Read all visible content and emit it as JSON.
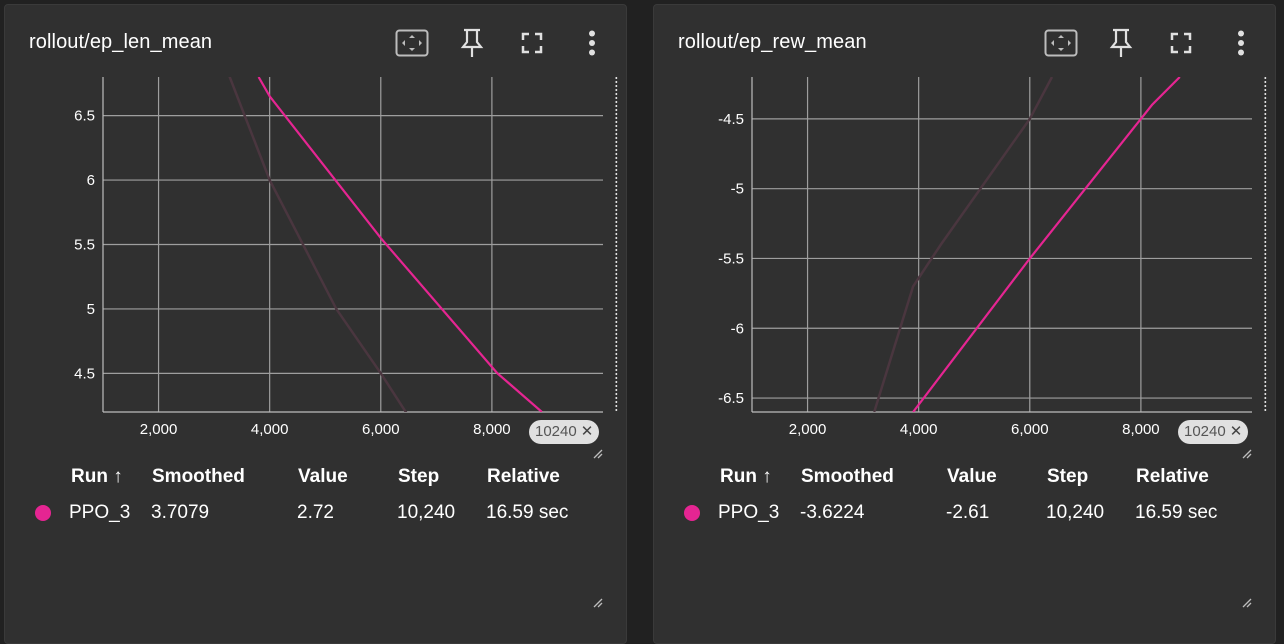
{
  "colors": {
    "accent": "#e52592",
    "raw": "#4a363f",
    "grid": "#9e9e9e",
    "bg": "#303030"
  },
  "table_headers": {
    "run": "Run ↑",
    "smoothed": "Smoothed",
    "value": "Value",
    "step": "Step",
    "relative": "Relative"
  },
  "icons": [
    "fit-domain-icon",
    "pin-icon",
    "fullscreen-icon",
    "more-vert-icon"
  ],
  "cards": [
    {
      "title": "rollout/ep_len_mean",
      "step_badge": "10240",
      "row": {
        "run": "PPO_3",
        "smoothed": "3.7079",
        "value": "2.72",
        "step": "10,240",
        "relative": "16.59 sec"
      }
    },
    {
      "title": "rollout/ep_rew_mean",
      "step_badge": "10240",
      "row": {
        "run": "PPO_3",
        "smoothed": "-3.6224",
        "value": "-2.61",
        "step": "10,240",
        "relative": "16.59 sec"
      }
    }
  ],
  "chart_data": [
    {
      "type": "line",
      "title": "rollout/ep_len_mean",
      "xlabel": "",
      "ylabel": "",
      "xlim": [
        1000,
        10000
      ],
      "ylim": [
        4.2,
        6.8
      ],
      "x_ticks": [
        2000,
        4000,
        6000,
        8000
      ],
      "x_tick_labels": [
        "2,000",
        "4,000",
        "6,000",
        "8,000"
      ],
      "y_ticks": [
        4.5,
        5,
        5.5,
        6,
        6.5
      ],
      "y_tick_labels": [
        "4.5",
        "5",
        "5.5",
        "6",
        "6.5"
      ],
      "grid": true,
      "current_step": 10240,
      "series": [
        {
          "name": "PPO_3",
          "role": "raw",
          "x": [
            3100,
            4000,
            5200,
            6000,
            6600
          ],
          "y": [
            7.0,
            6.0,
            5.0,
            4.5,
            4.1
          ]
        },
        {
          "name": "PPO_3",
          "role": "smoothed",
          "x": [
            3800,
            4000,
            6000,
            8100,
            8900
          ],
          "y": [
            6.8,
            6.65,
            5.55,
            4.5,
            4.2
          ]
        }
      ]
    },
    {
      "type": "line",
      "title": "rollout/ep_rew_mean",
      "xlabel": "",
      "ylabel": "",
      "xlim": [
        1000,
        10000
      ],
      "ylim": [
        -6.6,
        -4.2
      ],
      "x_ticks": [
        2000,
        4000,
        6000,
        8000
      ],
      "x_tick_labels": [
        "2,000",
        "4,000",
        "6,000",
        "8,000"
      ],
      "y_ticks": [
        -6.5,
        -6,
        -5.5,
        -5,
        -4.5
      ],
      "y_tick_labels": [
        "-6.5",
        "-6",
        "-5.5",
        "-5",
        "-4.5"
      ],
      "grid": true,
      "current_step": 10240,
      "series": [
        {
          "name": "PPO_3",
          "role": "raw",
          "x": [
            3200,
            3900,
            4400,
            6000,
            6400
          ],
          "y": [
            -6.6,
            -5.7,
            -5.4,
            -4.5,
            -4.2
          ]
        },
        {
          "name": "PPO_3",
          "role": "smoothed",
          "x": [
            3900,
            6000,
            8200,
            8700
          ],
          "y": [
            -6.6,
            -5.5,
            -4.4,
            -4.2
          ]
        }
      ]
    }
  ]
}
